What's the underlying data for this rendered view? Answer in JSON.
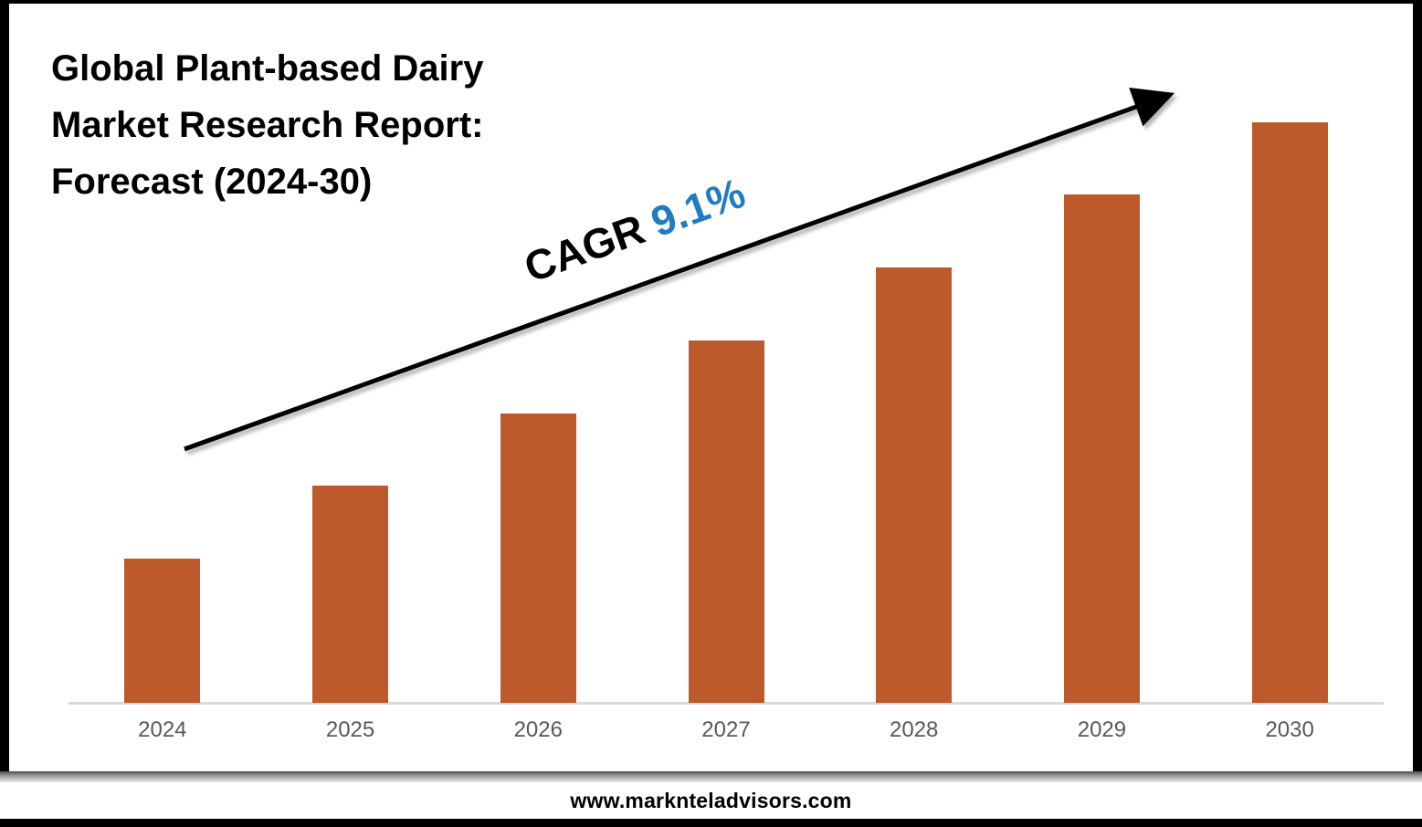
{
  "title": {
    "lines": [
      "Global Plant-based Dairy",
      "Market Research Report:",
      "Forecast (2024-30)"
    ]
  },
  "cagr": {
    "label": "CAGR",
    "value": "9.1%",
    "value_color": "#1F7CC1",
    "label_color": "#000000"
  },
  "footer": {
    "url": "www.marknteladvisors.com"
  },
  "colors": {
    "bar": "#BC5A2B",
    "axis_line": "#D9D9D9",
    "tick_label": "#595959",
    "arrow": "#000000",
    "background": "#FFFFFF",
    "border": "#000000"
  },
  "chart_data": {
    "type": "bar",
    "title": "Global Plant-based Dairy Market Research Report: Forecast (2024-30)",
    "categories": [
      "2024",
      "2025",
      "2026",
      "2027",
      "2028",
      "2029",
      "2030"
    ],
    "values": [
      24.8,
      37.4,
      49.8,
      62.4,
      75.0,
      87.6,
      100
    ],
    "values_note": "relative bar heights in % of tallest (2030) bar; no numeric y-axis shown",
    "xlabel": "",
    "ylabel": "",
    "ylim": [
      0,
      100
    ],
    "grid": false,
    "legend": false,
    "annotations": [
      "CAGR 9.1%"
    ]
  }
}
